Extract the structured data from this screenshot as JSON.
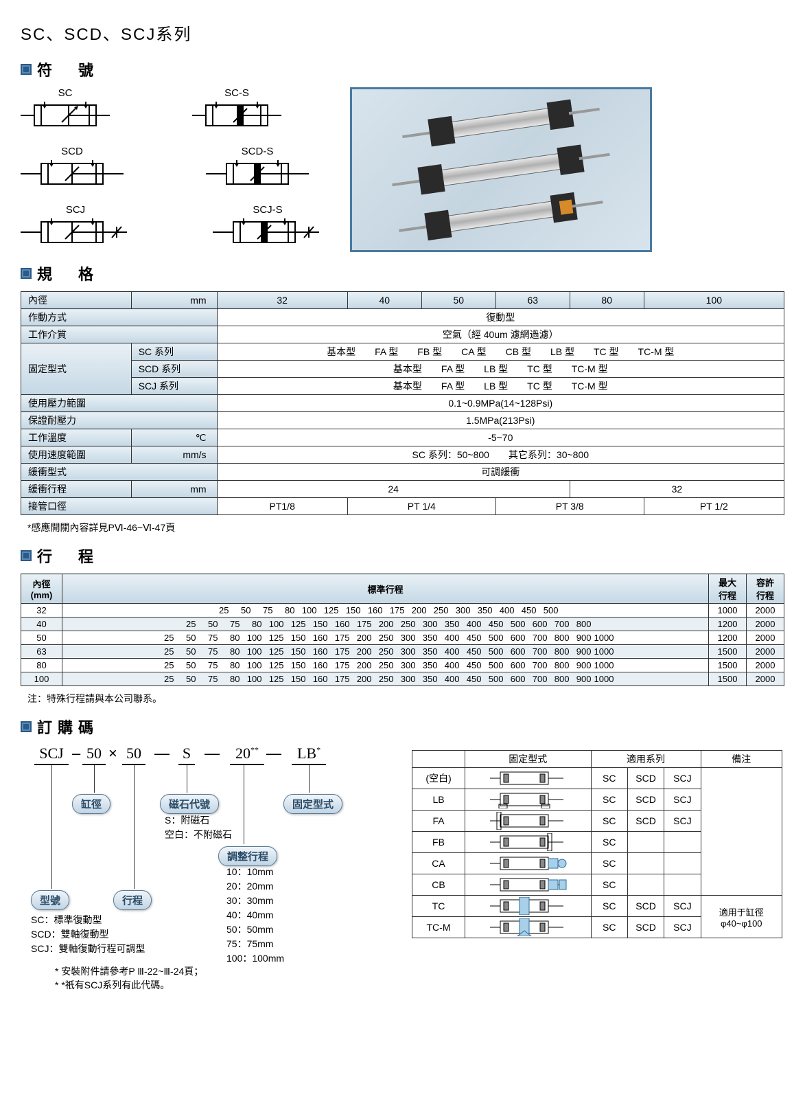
{
  "page_title": "SC、SCD、SCJ系列",
  "sections": {
    "symbols": "符　號",
    "spec": "規　格",
    "stroke": "行　程",
    "order": "訂購碼"
  },
  "symbol_labels": [
    "SC",
    "SC-S",
    "SCD",
    "SCD-S",
    "SCJ",
    "SCJ-S"
  ],
  "spec_table": {
    "header_label": "內徑",
    "header_unit": "mm",
    "diameters": [
      "32",
      "40",
      "50",
      "63",
      "80",
      "100"
    ],
    "rows": [
      {
        "label": "作動方式",
        "span": 6,
        "value": "復動型"
      },
      {
        "label": "工作介質",
        "span": 6,
        "value": "空氣（經 40um 濾網過濾）"
      }
    ],
    "mount_group_label": "固定型式",
    "mount_rows": [
      {
        "series": "SC 系列",
        "value": "基本型　　FA 型　　FB 型　　CA 型　　CB 型　　LB 型　　TC 型　　TC-M 型"
      },
      {
        "series": "SCD 系列",
        "value": "基本型　　FA 型　　LB 型　　TC 型　　TC-M 型"
      },
      {
        "series": "SCJ 系列",
        "value": "基本型　　FA 型　　LB 型　　TC 型　　TC-M 型"
      }
    ],
    "rows2": [
      {
        "label": "使用壓力範圍",
        "unit": "",
        "span": 6,
        "value": "0.1~0.9MPa(14~128Psi)"
      },
      {
        "label": "保證耐壓力",
        "unit": "",
        "span": 6,
        "value": "1.5MPa(213Psi)"
      },
      {
        "label": "工作溫度",
        "unit": "℃",
        "span": 6,
        "value": "-5~70"
      },
      {
        "label": "使用速度範圍",
        "unit": "mm/s",
        "span": 6,
        "value": "SC 系列：50~800　　其它系列：30~800"
      },
      {
        "label": "緩衝型式",
        "unit": "",
        "span": 6,
        "value": "可調緩衝"
      }
    ],
    "buffer_stroke": {
      "label": "緩衝行程",
      "unit": "mm",
      "values": [
        "24",
        "24",
        "32",
        "32"
      ],
      "colspans": [
        3,
        0,
        2,
        1
      ],
      "v1": "24",
      "v2": "32"
    },
    "port": {
      "label": "接管口徑",
      "values": [
        "PT1/8",
        "PT 1/4",
        "PT 3/8",
        "PT 1/2"
      ],
      "colspans": [
        1,
        2,
        2,
        1
      ]
    }
  },
  "spec_footnote": "*感應開關內容詳見PⅥ-46~Ⅵ-47頁",
  "stroke_table": {
    "header_dia": "內徑\n(mm)",
    "header_std": "標準行程",
    "header_max": "最大\n行程",
    "header_allow": "容許\n行程",
    "rows": [
      {
        "dia": "32",
        "values": [
          25,
          50,
          75,
          80,
          100,
          125,
          150,
          160,
          175,
          200,
          250,
          300,
          350,
          400,
          450,
          500
        ],
        "max": 1000,
        "allow": 2000
      },
      {
        "dia": "40",
        "values": [
          25,
          50,
          75,
          80,
          100,
          125,
          150,
          160,
          175,
          200,
          250,
          300,
          350,
          400,
          450,
          500,
          600,
          700,
          800
        ],
        "max": 1200,
        "allow": 2000
      },
      {
        "dia": "50",
        "values": [
          25,
          50,
          75,
          80,
          100,
          125,
          150,
          160,
          175,
          200,
          250,
          300,
          350,
          400,
          450,
          500,
          600,
          700,
          800,
          900,
          1000
        ],
        "max": 1200,
        "allow": 2000
      },
      {
        "dia": "63",
        "values": [
          25,
          50,
          75,
          80,
          100,
          125,
          150,
          160,
          175,
          200,
          250,
          300,
          350,
          400,
          450,
          500,
          600,
          700,
          800,
          900,
          1000
        ],
        "max": 1500,
        "allow": 2000
      },
      {
        "dia": "80",
        "values": [
          25,
          50,
          75,
          80,
          100,
          125,
          150,
          160,
          175,
          200,
          250,
          300,
          350,
          400,
          450,
          500,
          600,
          700,
          800,
          900,
          1000
        ],
        "max": 1500,
        "allow": 2000
      },
      {
        "dia": "100",
        "values": [
          25,
          50,
          75,
          80,
          100,
          125,
          150,
          160,
          175,
          200,
          250,
          300,
          350,
          400,
          450,
          500,
          600,
          700,
          800,
          900,
          1000
        ],
        "max": 1500,
        "allow": 2000
      }
    ]
  },
  "stroke_footnote": "注：特殊行程請與本公司聯系。",
  "order_code": {
    "parts": [
      "SCJ",
      "50",
      "50",
      "S",
      "20",
      "LB"
    ],
    "separators": [
      "–",
      "×",
      "—",
      "—",
      "—"
    ],
    "super2": "**",
    "super1": "*",
    "bubbles": {
      "model": "型號",
      "bore": "缸徑",
      "stroke": "行程",
      "magnet": "磁石代號",
      "adjust": "調整行程",
      "mount": "固定型式"
    },
    "magnet_note": "S：附磁石\n空白：不附磁石",
    "adjust_note": "10：10mm\n20：20mm\n30：30mm\n40：40mm\n50：50mm\n75：75mm\n100：100mm",
    "model_note": "SC：標準復動型\nSCD：雙軸復動型\nSCJ：雙軸復動行程可調型",
    "footnotes": [
      "* 安裝附件請參考P Ⅲ-22~Ⅲ-24頁；",
      "* *祇有SCJ系列有此代碼。"
    ]
  },
  "mount_table": {
    "header_mount": "固定型式",
    "header_series": "適用系列",
    "header_note": "備注",
    "rows": [
      {
        "code": "(空白)",
        "series": [
          "SC",
          "SCD",
          "SCJ"
        ],
        "note": ""
      },
      {
        "code": "LB",
        "series": [
          "SC",
          "SCD",
          "SCJ"
        ],
        "note": ""
      },
      {
        "code": "FA",
        "series": [
          "SC",
          "SCD",
          "SCJ"
        ],
        "note": ""
      },
      {
        "code": "FB",
        "series": [
          "SC"
        ],
        "note": ""
      },
      {
        "code": "CA",
        "series": [
          "SC"
        ],
        "note": ""
      },
      {
        "code": "CB",
        "series": [
          "SC"
        ],
        "note": ""
      },
      {
        "code": "TC",
        "series": [
          "SC",
          "SCD",
          "SCJ"
        ],
        "note_rowspan": 2,
        "note": "適用于缸徑\nφ40~φ100"
      },
      {
        "code": "TC-M",
        "series": [
          "SC",
          "SCD",
          "SCJ"
        ],
        "note": ""
      }
    ]
  },
  "colors": {
    "marker_fill1": "#5a8ab5",
    "marker_fill2": "#2a5a85",
    "table_grad_light": "#e8f0f5",
    "table_grad_dark": "#c5d8e5",
    "border": "#333333",
    "bubble_light": "#f0f5fa",
    "bubble_dark": "#c0d5e5"
  }
}
